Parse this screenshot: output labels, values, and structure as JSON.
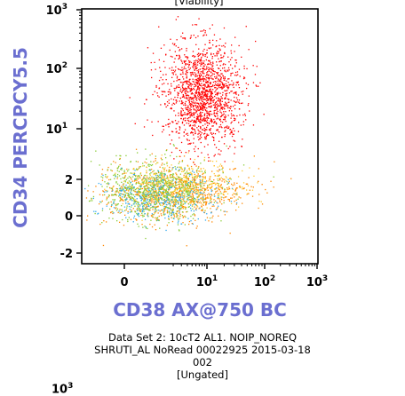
{
  "chart_data": {
    "type": "scatter",
    "title": "",
    "top_caption": "[Viability]",
    "xlabel": "CD38 AX@750 BC",
    "ylabel": "CD34 PERCPCY5.5",
    "x_scale": "biexponential",
    "y_scale": "biexponential",
    "x_ticks": [
      {
        "value": 0,
        "base": "0",
        "exp": ""
      },
      {
        "value": 10,
        "base": "10",
        "exp": "1"
      },
      {
        "value": 100,
        "base": "10",
        "exp": "2"
      },
      {
        "value": 1000,
        "base": "10",
        "exp": "3"
      }
    ],
    "y_ticks": [
      {
        "value": 1000,
        "base": "10",
        "exp": "3"
      },
      {
        "value": 100,
        "base": "10",
        "exp": "2"
      },
      {
        "value": 10,
        "base": "10",
        "exp": "1"
      },
      {
        "value": 2,
        "base": "2",
        "exp": ""
      },
      {
        "value": 0,
        "base": "0",
        "exp": ""
      },
      {
        "value": -2,
        "base": "-2",
        "exp": ""
      }
    ],
    "populations": [
      {
        "color": "#ff0000",
        "x_center": 8,
        "y_center": 40,
        "x_range": [
          1,
          40
        ],
        "y_range": [
          3,
          150
        ],
        "density": "high"
      },
      {
        "color": "#ff8800",
        "x_center": 2,
        "y_center": 1,
        "x_range": [
          -0.8,
          40
        ],
        "y_range": [
          -0.5,
          3
        ],
        "density": "medium"
      },
      {
        "color": "#88cc33",
        "x_center": 0.8,
        "y_center": 1.2,
        "x_range": [
          -0.8,
          10
        ],
        "y_range": [
          -0.5,
          3
        ],
        "density": "medium"
      },
      {
        "color": "#33aaee",
        "x_center": 1,
        "y_center": 0.8,
        "x_range": [
          -0.5,
          20
        ],
        "y_range": [
          -0.3,
          2.5
        ],
        "density": "low"
      },
      {
        "color": "#ffcc33",
        "x_center": 3,
        "y_center": 1.5,
        "x_range": [
          -0.5,
          30
        ],
        "y_range": [
          0,
          3
        ],
        "density": "low"
      }
    ],
    "grid": false,
    "legend": "none"
  },
  "caption": {
    "line1": "Data Set 2: 10cT2 AL1. NOIP_NOREQ",
    "line2": "SHRUTI_AL NoRead 00022925 2015-03-18",
    "line3": "002",
    "line4": "[Ungated]",
    "next_tick": "10",
    "next_tick_exp": "3"
  }
}
